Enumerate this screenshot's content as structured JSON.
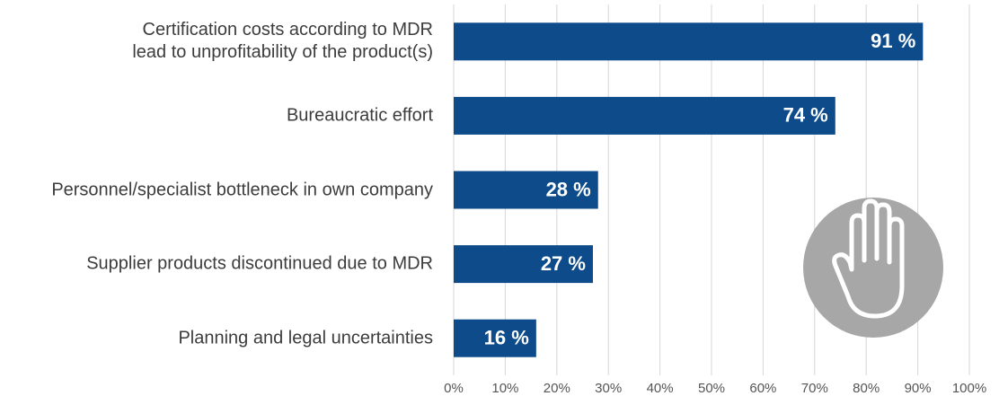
{
  "chart_data": {
    "type": "bar",
    "orientation": "horizontal",
    "categories": [
      "Certification costs according to MDR\nlead to unprofitability of the product(s)",
      "Bureaucratic effort",
      "Personnel/specialist bottleneck in own company",
      "Supplier products discontinued due to MDR",
      "Planning and legal uncertainties"
    ],
    "values": [
      91,
      74,
      28,
      27,
      16
    ],
    "value_labels": [
      "91 %",
      "74 %",
      "28 %",
      "27 %",
      "16 %"
    ],
    "color": "#0d4b8a",
    "xlim": [
      0,
      100
    ],
    "xticks": [
      {
        "value": 0,
        "label": "0%"
      },
      {
        "value": 10,
        "label": "10%"
      },
      {
        "value": 20,
        "label": "20%"
      },
      {
        "value": 30,
        "label": "30%"
      },
      {
        "value": 40,
        "label": "40%"
      },
      {
        "value": 50,
        "label": "50%"
      },
      {
        "value": 60,
        "label": "60%"
      },
      {
        "value": 70,
        "label": "70%"
      },
      {
        "value": 80,
        "label": "80%"
      },
      {
        "value": 90,
        "label": "90%"
      },
      {
        "value": 100,
        "label": "100%"
      }
    ],
    "grid": true
  }
}
